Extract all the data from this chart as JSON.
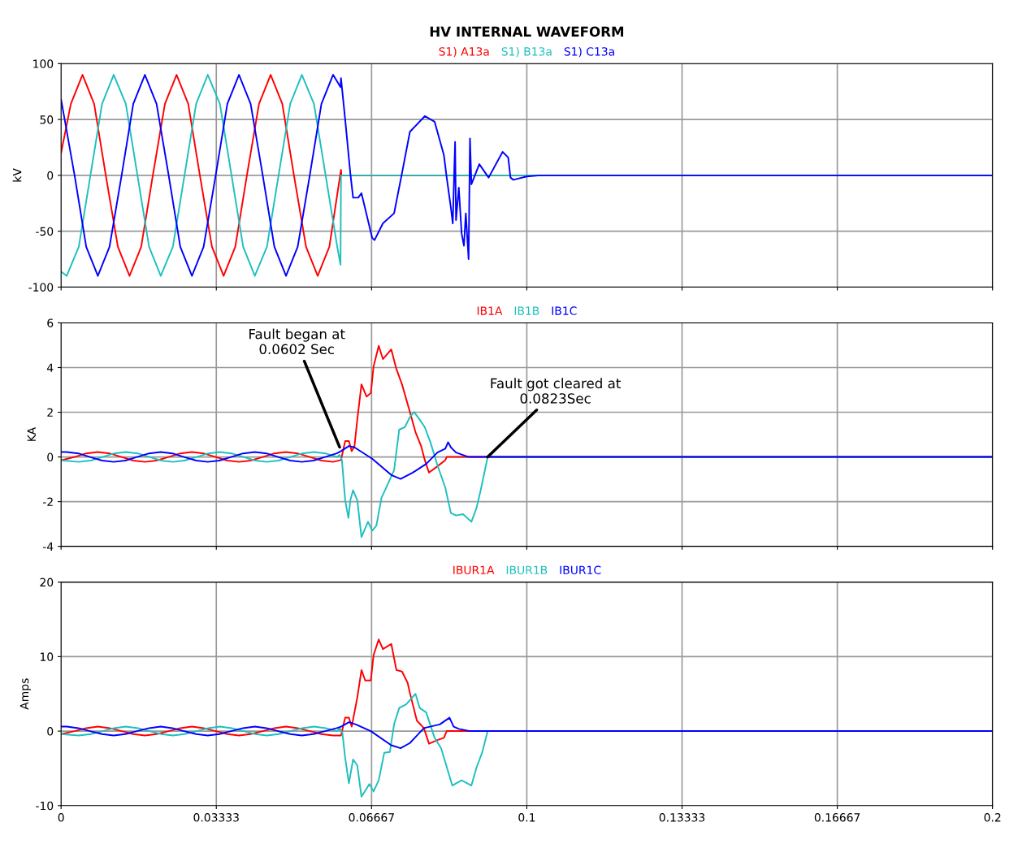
{
  "chart_data": [
    {
      "type": "line",
      "title": "HV INTERNAL WAVEFORM",
      "ylabel": "kV",
      "xlim": [
        0,
        0.2
      ],
      "ylim": [
        -100,
        100
      ],
      "xticks": [
        0,
        0.03333,
        0.06667,
        0.1,
        0.13333,
        0.16667,
        0.2
      ],
      "yticks": [
        -100,
        -50,
        0,
        50,
        100
      ],
      "grid": true,
      "legend": "top",
      "tick_labels": "y",
      "series": [
        {
          "name": "S1) A13a",
          "color": "#ff0000",
          "x": [
            0,
            0.0021,
            0.0046,
            0.0071,
            0.0096,
            0.0122,
            0.0147,
            0.0172,
            0.0197,
            0.0223,
            0.0248,
            0.0273,
            0.0298,
            0.0324,
            0.0349,
            0.0374,
            0.0399,
            0.0425,
            0.045,
            0.0475,
            0.05,
            0.0526,
            0.0551,
            0.0576,
            0.0601,
            0.0602,
            0.2
          ],
          "values": [
            20,
            64,
            90,
            64,
            0,
            -64,
            -90,
            -64,
            0,
            64,
            90,
            64,
            0,
            -64,
            -90,
            -64,
            0,
            64,
            90,
            64,
            0,
            -64,
            -90,
            -64,
            5,
            0,
            0
          ]
        },
        {
          "name": "S1) B13a",
          "color": "#1fbfbf",
          "x": [
            0,
            0.0012,
            0.0038,
            0.0063,
            0.0088,
            0.0113,
            0.0139,
            0.0164,
            0.0189,
            0.0214,
            0.024,
            0.0265,
            0.029,
            0.0315,
            0.0341,
            0.0366,
            0.0391,
            0.0416,
            0.0442,
            0.0467,
            0.0492,
            0.0517,
            0.0543,
            0.0568,
            0.0593,
            0.06,
            0.0601,
            0.2
          ],
          "values": [
            -86,
            -90,
            -64,
            0,
            64,
            90,
            64,
            0,
            -64,
            -90,
            -64,
            0,
            64,
            90,
            64,
            0,
            -64,
            -90,
            -64,
            0,
            64,
            90,
            64,
            0,
            -64,
            -80,
            0,
            0
          ]
        },
        {
          "name": "S1) C13a",
          "color": "#0000ff",
          "x": [
            0,
            0.0029,
            0.0054,
            0.0079,
            0.0104,
            0.013,
            0.0155,
            0.018,
            0.0205,
            0.0231,
            0.0256,
            0.0281,
            0.0306,
            0.0332,
            0.0357,
            0.0382,
            0.0407,
            0.0433,
            0.0458,
            0.0483,
            0.0508,
            0.0534,
            0.0559,
            0.0584,
            0.06,
            0.0601,
            0.061,
            0.0621,
            0.0627,
            0.0638,
            0.0645,
            0.0668,
            0.0673,
            0.0691,
            0.0715,
            0.0732,
            0.0749,
            0.0781,
            0.0802,
            0.0822,
            0.0828,
            0.0837,
            0.0841,
            0.0846,
            0.0848,
            0.0854,
            0.086,
            0.0865,
            0.0869,
            0.0875,
            0.0878,
            0.0881,
            0.0898,
            0.0918,
            0.0948,
            0.096,
            0.0965,
            0.0971,
            0.1,
            0.1029,
            0.2
          ],
          "values": [
            68,
            0,
            -64,
            -90,
            -64,
            0,
            64,
            90,
            64,
            0,
            -64,
            -90,
            -64,
            0,
            64,
            90,
            64,
            0,
            -64,
            -90,
            -64,
            0,
            64,
            90,
            79,
            87,
            50,
            2,
            -20,
            -20,
            -16,
            -56,
            -58,
            -43,
            -34,
            2,
            39,
            53,
            48,
            18,
            -2,
            -29,
            -43,
            30,
            -40,
            -11,
            -52,
            -63,
            -34,
            -75,
            33,
            -8,
            10,
            -2,
            21,
            16,
            -2,
            -4,
            -1,
            0,
            0
          ]
        }
      ]
    },
    {
      "type": "line",
      "ylabel": "KA",
      "xlim": [
        0,
        0.2
      ],
      "ylim": [
        -4,
        6
      ],
      "xticks": [
        0,
        0.03333,
        0.06667,
        0.1,
        0.13333,
        0.16667,
        0.2
      ],
      "yticks": [
        -4,
        -2,
        0,
        2,
        4,
        6
      ],
      "grid": true,
      "legend": "top",
      "tick_labels": "y",
      "annotations": [
        {
          "text": "Fault began at\n0.0602 Sec",
          "x": 0.0598,
          "y": 0.44
        },
        {
          "text": "Fault got cleared at\n0.0823Sec",
          "x": 0.0916,
          "y": 0
        }
      ],
      "series": [
        {
          "name": "IB1A",
          "color": "#ff0000",
          "x": [
            0,
            0.0029,
            0.0054,
            0.0079,
            0.0104,
            0.013,
            0.0155,
            0.018,
            0.0205,
            0.0231,
            0.0256,
            0.0281,
            0.0306,
            0.0332,
            0.0357,
            0.0382,
            0.0407,
            0.0433,
            0.0458,
            0.0483,
            0.0508,
            0.0534,
            0.0559,
            0.0584,
            0.0601,
            0.061,
            0.0618,
            0.0624,
            0.063,
            0.0636,
            0.0645,
            0.0656,
            0.0665,
            0.0671,
            0.0682,
            0.0691,
            0.0709,
            0.072,
            0.0732,
            0.0749,
            0.0761,
            0.0773,
            0.0781,
            0.079,
            0.0808,
            0.0825,
            0.0828,
            0.0872,
            0.2
          ],
          "values": [
            -0.15,
            0,
            0.16,
            0.22,
            0.16,
            0,
            -0.16,
            -0.22,
            -0.16,
            0,
            0.16,
            0.22,
            0.16,
            0,
            -0.16,
            -0.22,
            -0.16,
            0,
            0.16,
            0.22,
            0.16,
            0,
            -0.16,
            -0.22,
            -0.14,
            0.71,
            0.71,
            0.26,
            0.49,
            1.67,
            3.25,
            2.7,
            2.86,
            4.05,
            4.97,
            4.38,
            4.81,
            3.93,
            3.25,
            2.01,
            1.11,
            0.49,
            -0.14,
            -0.7,
            -0.42,
            -0.14,
            0,
            0,
            0
          ]
        },
        {
          "name": "IB1B",
          "color": "#1fbfbf",
          "x": [
            0,
            0.0038,
            0.0064,
            0.0089,
            0.0114,
            0.0139,
            0.0165,
            0.019,
            0.0215,
            0.024,
            0.0265,
            0.0291,
            0.0316,
            0.0341,
            0.0366,
            0.0392,
            0.0417,
            0.0442,
            0.0467,
            0.0492,
            0.0518,
            0.0543,
            0.0568,
            0.0593,
            0.0598,
            0.0603,
            0.061,
            0.0617,
            0.0621,
            0.0627,
            0.0636,
            0.0645,
            0.0659,
            0.0668,
            0.0677,
            0.0688,
            0.0703,
            0.0715,
            0.0726,
            0.0738,
            0.0749,
            0.0758,
            0.077,
            0.0781,
            0.0793,
            0.0808,
            0.0825,
            0.0837,
            0.0848,
            0.0863,
            0.0881,
            0.0892,
            0.0901,
            0.0916,
            0.2
          ],
          "values": [
            -0.15,
            -0.22,
            -0.16,
            0,
            0.16,
            0.22,
            0.16,
            0,
            -0.16,
            -0.22,
            -0.16,
            0,
            0.16,
            0.22,
            0.16,
            0,
            -0.16,
            -0.22,
            -0.16,
            0,
            0.16,
            0.22,
            0.16,
            0,
            0.09,
            -0.14,
            -1.94,
            -2.73,
            -1.94,
            -1.49,
            -1.94,
            -3.58,
            -2.9,
            -3.3,
            -3.07,
            -1.83,
            -1.15,
            -0.59,
            1.22,
            1.33,
            1.79,
            2.01,
            1.67,
            1.33,
            0.66,
            -0.36,
            -1.38,
            -2.51,
            -2.62,
            -2.56,
            -2.9,
            -2.28,
            -1.49,
            0,
            0
          ]
        },
        {
          "name": "IB1C",
          "color": "#0000ff",
          "x": [
            0,
            0.0012,
            0.0037,
            0.0062,
            0.0088,
            0.0113,
            0.0138,
            0.0163,
            0.0189,
            0.0214,
            0.0239,
            0.0264,
            0.029,
            0.0315,
            0.034,
            0.0365,
            0.0391,
            0.0416,
            0.0441,
            0.0466,
            0.0492,
            0.0517,
            0.0542,
            0.0567,
            0.0592,
            0.0601,
            0.0618,
            0.063,
            0.0668,
            0.0709,
            0.0729,
            0.0755,
            0.0784,
            0.0808,
            0.0825,
            0.0831,
            0.0837,
            0.0848,
            0.0875,
            0.2
          ],
          "values": [
            0.22,
            0.22,
            0.16,
            0,
            -0.16,
            -0.22,
            -0.16,
            0,
            0.16,
            0.22,
            0.16,
            0,
            -0.16,
            -0.22,
            -0.16,
            0,
            0.16,
            0.22,
            0.16,
            0,
            -0.16,
            -0.22,
            -0.16,
            0,
            0.16,
            0.26,
            0.49,
            0.43,
            -0.08,
            -0.81,
            -0.98,
            -0.7,
            -0.31,
            0.2,
            0.37,
            0.66,
            0.43,
            0.2,
            0,
            0
          ]
        }
      ]
    },
    {
      "type": "line",
      "ylabel": "Amps",
      "xlim": [
        0,
        0.2
      ],
      "ylim": [
        -10,
        20
      ],
      "xticks": [
        0,
        0.03333,
        0.06667,
        0.1,
        0.13333,
        0.16667,
        0.2
      ],
      "yticks": [
        -10,
        0,
        10,
        20
      ],
      "grid": true,
      "legend": "top",
      "series": [
        {
          "name": "IBUR1A",
          "color": "#ff0000",
          "x": [
            0,
            0.0029,
            0.0054,
            0.0079,
            0.0104,
            0.013,
            0.0155,
            0.018,
            0.0205,
            0.0231,
            0.0256,
            0.0281,
            0.0306,
            0.0332,
            0.0357,
            0.0382,
            0.0407,
            0.0433,
            0.0458,
            0.0483,
            0.0508,
            0.0534,
            0.0559,
            0.0584,
            0.0601,
            0.061,
            0.0618,
            0.0624,
            0.0636,
            0.0645,
            0.0653,
            0.0665,
            0.0671,
            0.0682,
            0.0691,
            0.0709,
            0.072,
            0.0732,
            0.0744,
            0.0749,
            0.0764,
            0.0779,
            0.079,
            0.0808,
            0.0822,
            0.0828,
            0.2
          ],
          "values": [
            -0.4,
            0,
            0.4,
            0.6,
            0.4,
            0,
            -0.4,
            -0.6,
            -0.4,
            0,
            0.4,
            0.6,
            0.4,
            0,
            -0.4,
            -0.6,
            -0.4,
            0,
            0.4,
            0.6,
            0.4,
            0,
            -0.4,
            -0.6,
            -0.6,
            1.8,
            1.8,
            0.6,
            4.5,
            8.2,
            6.8,
            6.8,
            10.2,
            12.3,
            11.0,
            11.7,
            8.2,
            8.0,
            6.5,
            5.1,
            1.4,
            0.4,
            -1.7,
            -1.2,
            -0.9,
            0,
            0
          ]
        },
        {
          "name": "IBUR1B",
          "color": "#1fbfbf",
          "x": [
            0,
            0.0038,
            0.0064,
            0.0089,
            0.0114,
            0.0139,
            0.0165,
            0.019,
            0.0215,
            0.024,
            0.0265,
            0.0291,
            0.0316,
            0.0341,
            0.0366,
            0.0392,
            0.0417,
            0.0442,
            0.0467,
            0.0492,
            0.0518,
            0.0543,
            0.0568,
            0.0593,
            0.0598,
            0.0604,
            0.061,
            0.0618,
            0.0627,
            0.0636,
            0.0645,
            0.0662,
            0.0671,
            0.0682,
            0.0694,
            0.0706,
            0.0715,
            0.0726,
            0.0741,
            0.0761,
            0.077,
            0.0784,
            0.0802,
            0.0816,
            0.084,
            0.086,
            0.0881,
            0.0892,
            0.0904,
            0.0916,
            0.2
          ],
          "values": [
            -0.4,
            -0.6,
            -0.4,
            0,
            0.4,
            0.6,
            0.4,
            0,
            -0.4,
            -0.6,
            -0.4,
            0,
            0.4,
            0.6,
            0.4,
            0,
            -0.4,
            -0.6,
            -0.4,
            0,
            0.4,
            0.6,
            0.4,
            0,
            0.4,
            -0.2,
            -3.6,
            -7.0,
            -3.8,
            -4.6,
            -8.8,
            -7.1,
            -8.1,
            -6.6,
            -2.9,
            -2.8,
            0.9,
            3.1,
            3.6,
            5.0,
            3.1,
            2.5,
            -0.9,
            -2.3,
            -7.3,
            -6.6,
            -7.3,
            -4.9,
            -2.9,
            0,
            0
          ]
        },
        {
          "name": "IBUR1C",
          "color": "#0000ff",
          "x": [
            0,
            0.0012,
            0.0037,
            0.0062,
            0.0088,
            0.0113,
            0.0138,
            0.0163,
            0.0189,
            0.0214,
            0.0239,
            0.0264,
            0.029,
            0.0315,
            0.034,
            0.0365,
            0.0391,
            0.0416,
            0.0441,
            0.0466,
            0.0492,
            0.0517,
            0.0542,
            0.0567,
            0.0592,
            0.0601,
            0.0618,
            0.0633,
            0.0665,
            0.0709,
            0.0729,
            0.0749,
            0.0779,
            0.0813,
            0.0834,
            0.0843,
            0.0854,
            0.0878,
            0.2
          ],
          "values": [
            0.6,
            0.6,
            0.4,
            0,
            -0.4,
            -0.6,
            -0.4,
            0,
            0.4,
            0.6,
            0.4,
            0,
            -0.4,
            -0.6,
            -0.4,
            0,
            0.4,
            0.6,
            0.4,
            0,
            -0.4,
            -0.6,
            -0.4,
            0,
            0.4,
            0.6,
            1.2,
            0.9,
            0,
            -1.9,
            -2.3,
            -1.6,
            0.4,
            0.9,
            1.8,
            0.6,
            0.3,
            0,
            0
          ]
        }
      ]
    }
  ]
}
